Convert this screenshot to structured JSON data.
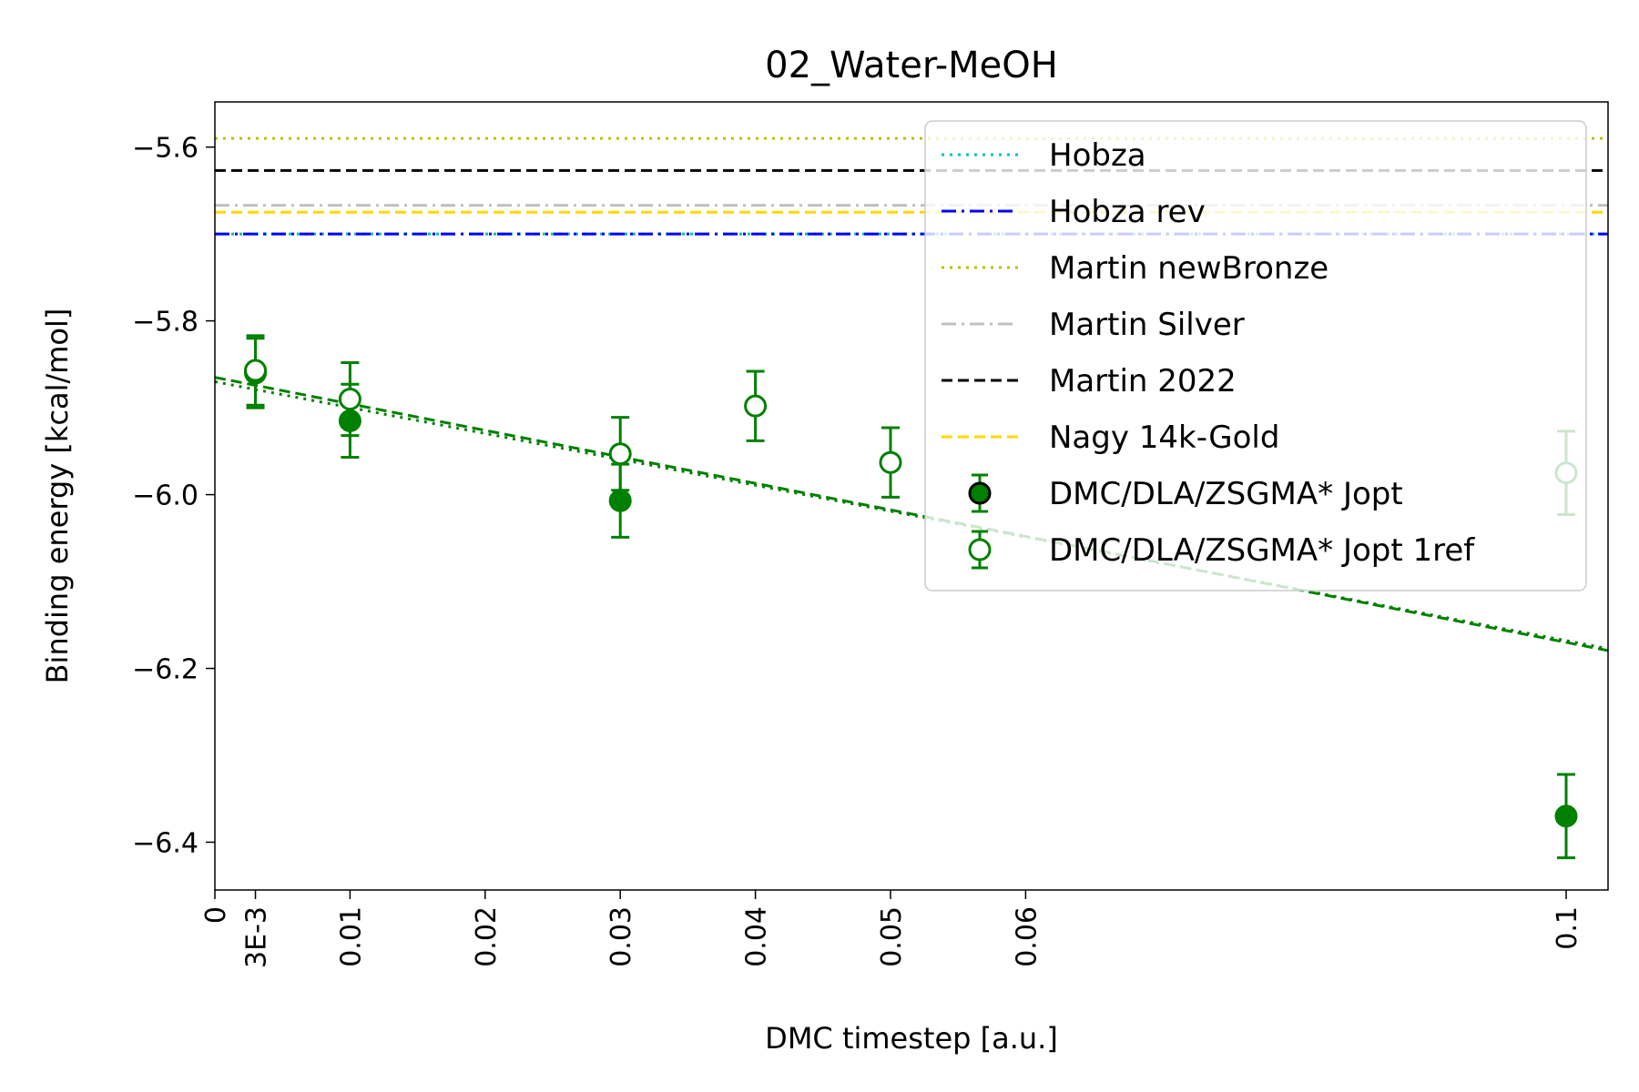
{
  "chart_data": {
    "type": "scatter",
    "title": "02_Water-MeOH",
    "xlabel": "DMC timestep [a.u.]",
    "ylabel": "Binding energy [kcal/mol]",
    "xlim": [
      0,
      0.1031
    ],
    "ylim": [
      -6.455,
      -5.548
    ],
    "x_ticks": [
      {
        "value": 0,
        "label": "0"
      },
      {
        "value": 0.003,
        "label": "3E-3"
      },
      {
        "value": 0.01,
        "label": "0.01"
      },
      {
        "value": 0.02,
        "label": "0.02"
      },
      {
        "value": 0.03,
        "label": "0.03"
      },
      {
        "value": 0.04,
        "label": "0.04"
      },
      {
        "value": 0.05,
        "label": "0.05"
      },
      {
        "value": 0.06,
        "label": "0.06"
      },
      {
        "value": 0.1,
        "label": "0.1"
      }
    ],
    "y_ticks": [
      {
        "value": -5.6,
        "label": "−5.6"
      },
      {
        "value": -5.8,
        "label": "−5.8"
      },
      {
        "value": -6.0,
        "label": "−6.0"
      },
      {
        "value": -6.2,
        "label": "−6.2"
      },
      {
        "value": -6.4,
        "label": "−6.4"
      }
    ],
    "grid": false,
    "legend_position": "top-right",
    "reference_lines": [
      {
        "name": "Hobza",
        "y": -5.7,
        "color": "#00bfbf",
        "style": "dotted"
      },
      {
        "name": "Hobza rev",
        "y": -5.7,
        "color": "#0000ff",
        "style": "dashdot"
      },
      {
        "name": "Martin newBronze",
        "y": -5.59,
        "color": "#bfbf00",
        "style": "dotted"
      },
      {
        "name": "Martin Silver",
        "y": -5.667,
        "color": "#c0c0c0",
        "style": "dashdot"
      },
      {
        "name": "Martin 2022",
        "y": -5.627,
        "color": "#000000",
        "style": "dashed"
      },
      {
        "name": "Nagy 14k-Gold",
        "y": -5.675,
        "color": "#ffd700",
        "style": "dashed"
      }
    ],
    "series": [
      {
        "name": "DMC/DLA/ZSGMA* Jopt",
        "marker": "filled-circle",
        "color": "#008000",
        "points": [
          {
            "x": 0.003,
            "y": -5.86,
            "err": 0.04
          },
          {
            "x": 0.01,
            "y": -5.915,
            "err": 0.042
          },
          {
            "x": 0.03,
            "y": -6.007,
            "err": 0.042
          },
          {
            "x": 0.1,
            "y": -6.37,
            "err": 0.048
          }
        ],
        "fit": {
          "type": "linear",
          "style": "dashed",
          "intercept": -5.865,
          "slope": -3.05
        }
      },
      {
        "name": "DMC/DLA/ZSGMA* Jopt 1ref",
        "marker": "open-circle",
        "color": "#008000",
        "points": [
          {
            "x": 0.003,
            "y": -5.857,
            "err": 0.04
          },
          {
            "x": 0.01,
            "y": -5.89,
            "err": 0.042
          },
          {
            "x": 0.03,
            "y": -5.953,
            "err": 0.042
          },
          {
            "x": 0.04,
            "y": -5.898,
            "err": 0.04
          },
          {
            "x": 0.05,
            "y": -5.963,
            "err": 0.04
          },
          {
            "x": 0.1,
            "y": -5.975,
            "err": 0.048
          }
        ],
        "fit": {
          "type": "linear",
          "style": "dotted",
          "intercept": -5.87,
          "slope": -2.98
        }
      }
    ]
  }
}
